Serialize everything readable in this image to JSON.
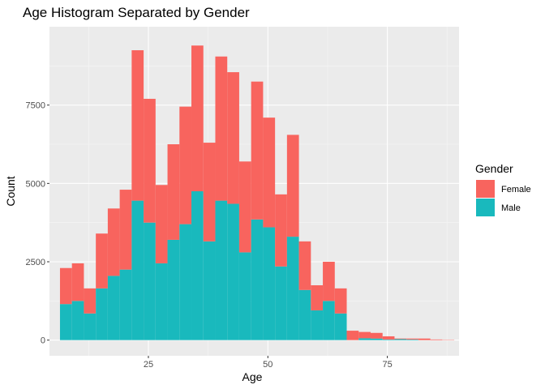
{
  "chart_data": {
    "type": "bar",
    "stacked": true,
    "title": "Age Histogram Separated by Gender",
    "xlabel": "Age",
    "ylabel": "Count",
    "xlim": [
      4.3,
      90
    ],
    "ylim": [
      -500,
      10000
    ],
    "xticks": [
      25,
      50,
      75
    ],
    "yticks": [
      0,
      2500,
      5000,
      7500
    ],
    "grid": true,
    "legend": {
      "title": "Gender",
      "position": "right"
    },
    "bin_width": 2.5,
    "bin_left_edges": [
      6.5,
      9.0,
      11.5,
      14.0,
      16.5,
      19.0,
      21.5,
      24.0,
      26.5,
      29.0,
      31.5,
      34.0,
      36.5,
      39.0,
      41.5,
      44.0,
      46.5,
      49.0,
      51.5,
      54.0,
      56.5,
      59.0,
      61.5,
      64.0,
      66.5,
      69.0,
      71.5,
      74.0,
      76.5,
      79.0,
      81.5,
      84.0,
      86.5
    ],
    "series": [
      {
        "name": "Male",
        "color": "#19b9bd",
        "values": [
          1150,
          1250,
          850,
          1650,
          2050,
          2250,
          4450,
          3750,
          2450,
          3200,
          3700,
          4750,
          3150,
          4450,
          4350,
          2800,
          3850,
          3600,
          2350,
          3300,
          1600,
          950,
          1250,
          850,
          0,
          60,
          50,
          20,
          30,
          20,
          0,
          0,
          0
        ]
      },
      {
        "name": "Female",
        "color": "#f8645e",
        "values": [
          1150,
          1200,
          800,
          1750,
          2150,
          2550,
          4800,
          3950,
          2500,
          3050,
          3750,
          4650,
          3150,
          4600,
          4200,
          2900,
          4400,
          3500,
          2300,
          3250,
          1550,
          800,
          1250,
          800,
          300,
          200,
          180,
          100,
          20,
          30,
          50,
          20,
          10
        ]
      }
    ]
  }
}
